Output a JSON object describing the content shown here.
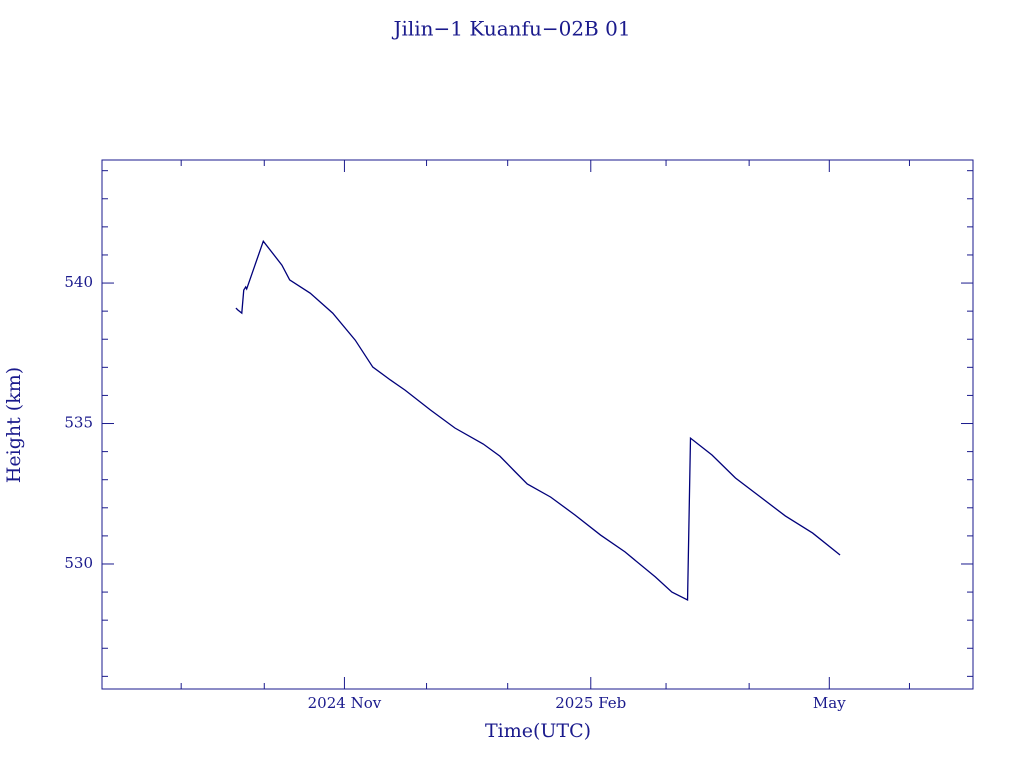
{
  "chart_data": {
    "type": "line",
    "title": "Jilin−1 Kuanfu−02B 01",
    "x_label": "Time(UTC)",
    "y_label": "Height (km)",
    "xlim": [
      2024.585,
      2025.476
    ],
    "ylim": [
      525.55,
      544.38
    ],
    "xticks": [
      {
        "value": 2024.833,
        "label": "2024 Nov"
      },
      {
        "value": 2025.085,
        "label": "2025 Feb"
      },
      {
        "value": 2025.329,
        "label": "May"
      }
    ],
    "xminorticks": [
      2024.666,
      2024.751,
      2024.917,
      2025.0,
      2025.162,
      2025.247,
      2025.411
    ],
    "yticks": [
      530,
      535,
      540
    ],
    "yminorticks": [
      526,
      527,
      528,
      529,
      531,
      532,
      533,
      534,
      536,
      537,
      538,
      539,
      541,
      542,
      543,
      544
    ],
    "series": [
      {
        "name": "Height",
        "color": "#00007a",
        "x": [
          2024.722,
          2024.724,
          2024.728,
          2024.73,
          2024.732,
          2024.733,
          2024.75,
          2024.769,
          2024.777,
          2024.798,
          2024.821,
          2024.844,
          2024.862,
          2024.88,
          2024.895,
          2024.921,
          2024.946,
          2024.975,
          2024.992,
          2025.008,
          2025.02,
          2025.044,
          2025.069,
          2025.095,
          2025.12,
          2025.151,
          2025.168,
          2025.184,
          2025.187,
          2025.209,
          2025.233,
          2025.253,
          2025.284,
          2025.312,
          2025.34
        ],
        "values": [
          539.11,
          539.04,
          538.93,
          539.75,
          539.86,
          539.79,
          541.49,
          540.64,
          540.11,
          539.64,
          538.93,
          537.97,
          537.01,
          536.55,
          536.19,
          535.48,
          534.84,
          534.27,
          533.84,
          533.27,
          532.85,
          532.38,
          531.74,
          531.03,
          530.43,
          529.54,
          529.0,
          528.72,
          534.48,
          533.88,
          533.06,
          532.53,
          531.71,
          531.1,
          530.32
        ]
      }
    ]
  }
}
